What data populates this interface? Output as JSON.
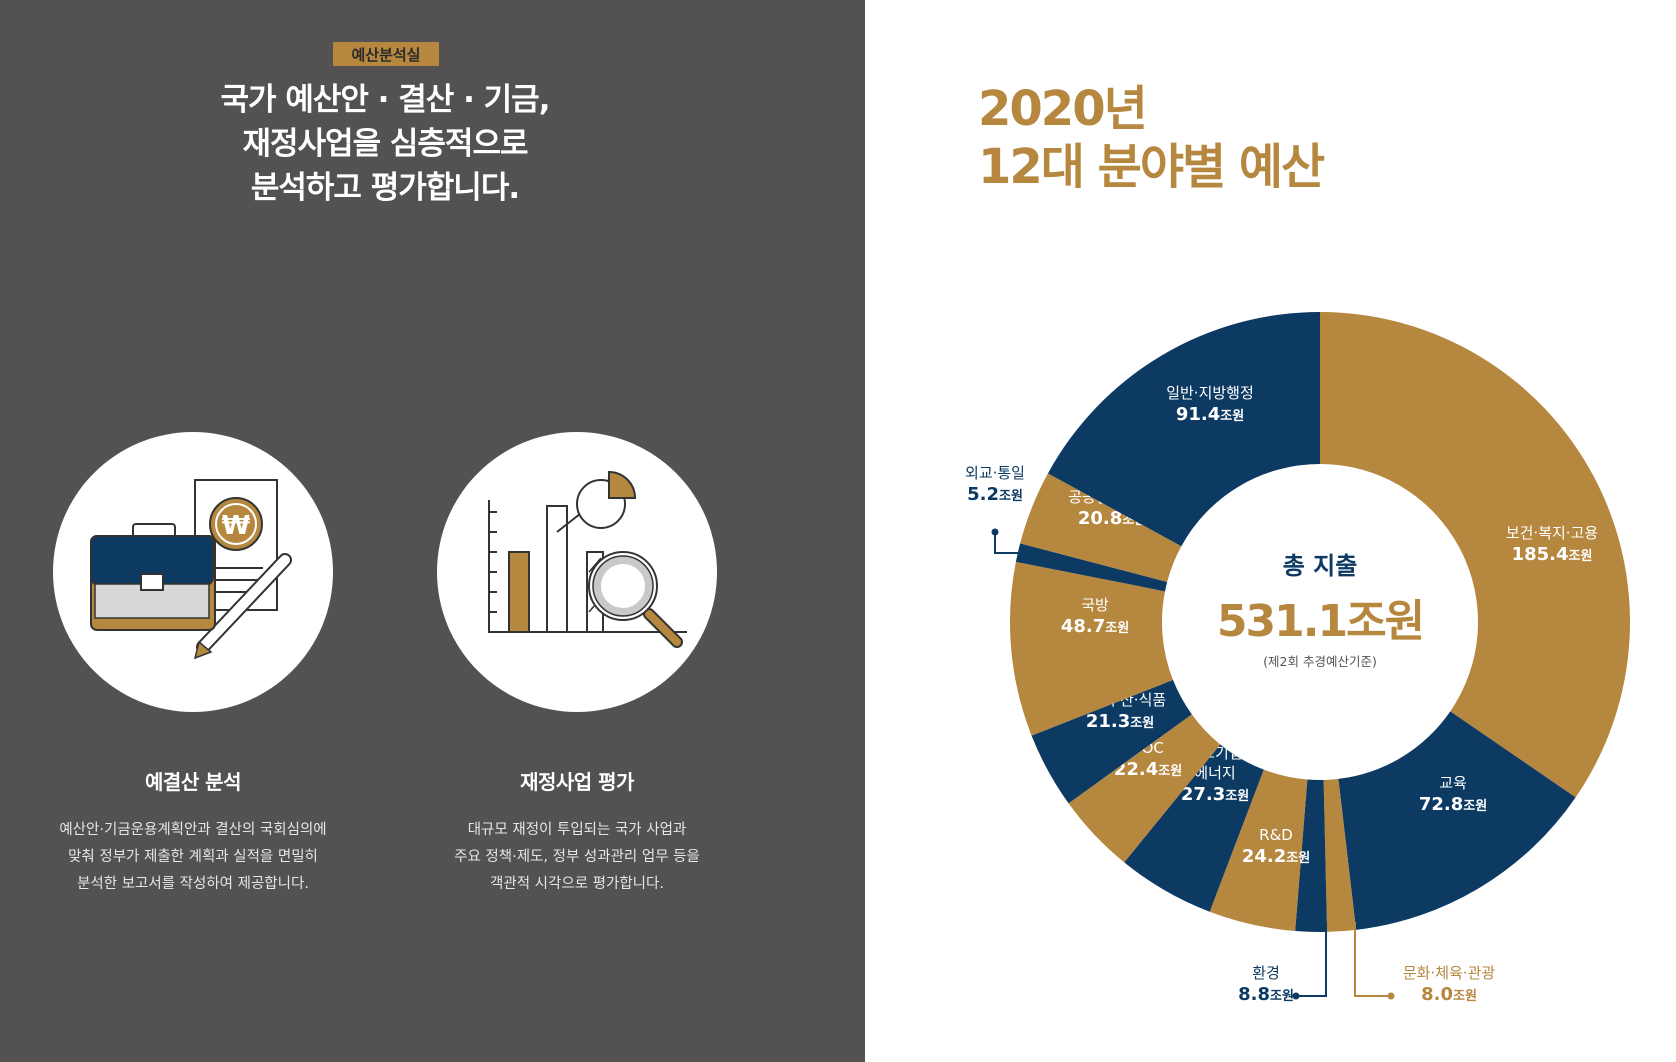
{
  "left_panel": {
    "badge": "예산분석실",
    "headline": [
      "국가 예산안 · 결산 · 기금,",
      "재정사업을 심층적으로",
      "분석하고 평가합니다."
    ],
    "cards": [
      {
        "icon": "briefcase-document-icon",
        "title": "예결산 분석",
        "desc": [
          "예산안·기금운용계획안과 결산의 국회심의에",
          "맞춰 정부가 제출한 계획과 실적을 면밀히",
          "분석한 보고서를 작성하여 제공합니다."
        ]
      },
      {
        "icon": "chart-magnifier-icon",
        "title": "재정사업 평가",
        "desc": [
          "대규모 재정이 투입되는 국가 사업과",
          "주요 정책·제도, 정부 성과관리 업무 등을",
          "객관적 시각으로 평가합니다."
        ]
      }
    ]
  },
  "chart_title": [
    "2020년",
    "12대 분야별 예산"
  ],
  "chart_data": {
    "type": "pie",
    "title": "2020년 12대 분야별 예산",
    "center": {
      "title": "총 지출",
      "value": "531.1조원",
      "note": "(제2회 추경예산기준)"
    },
    "unit": "조원",
    "start": "12 o'clock, clockwise",
    "slices": [
      {
        "name": "보건·복지·고용",
        "value": 185.4,
        "label": "185.4",
        "color": "#b5873f"
      },
      {
        "name": "교육",
        "value": 72.8,
        "label": "72.8",
        "color": "#0d3a63"
      },
      {
        "name": "문화·체육·관광",
        "value": 8.0,
        "label": "8.0",
        "color": "#b5873f"
      },
      {
        "name": "환경",
        "value": 8.8,
        "label": "8.8",
        "color": "#0d3a63"
      },
      {
        "name": "R&D",
        "value": 24.2,
        "label": "24.2",
        "color": "#b5873f"
      },
      {
        "name": "산업 중소기업 에너지",
        "value": 27.3,
        "label": "27.3",
        "color": "#0d3a63"
      },
      {
        "name": "SOC",
        "value": 22.4,
        "label": "22.4",
        "color": "#b5873f"
      },
      {
        "name": "농림·수산·식품",
        "value": 21.3,
        "label": "21.3",
        "color": "#0d3a63"
      },
      {
        "name": "국방",
        "value": 48.7,
        "label": "48.7",
        "color": "#b5873f"
      },
      {
        "name": "외교·통일",
        "value": 5.2,
        "label": "5.2",
        "color": "#0d3a63"
      },
      {
        "name": "공공질서·안전",
        "value": 20.8,
        "label": "20.8",
        "color": "#b5873f"
      },
      {
        "name": "일반·지방행정",
        "value": 91.4,
        "label": "91.4",
        "color": "#0d3a63"
      }
    ]
  },
  "colors": {
    "gold": "#b5873f",
    "navy": "#0d3a63",
    "panel_bg": "#535151"
  }
}
